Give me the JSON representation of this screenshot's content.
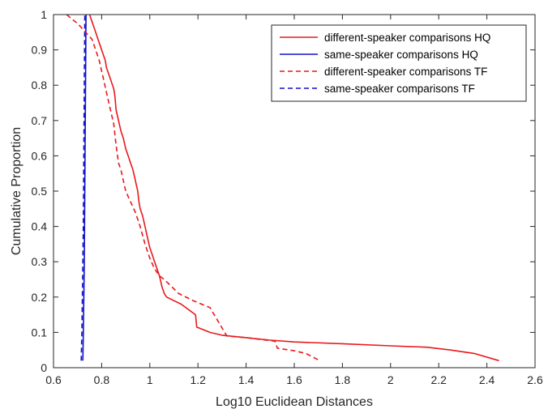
{
  "chart_data": {
    "type": "line",
    "title": "",
    "xlabel": "Log10 Euclidean Distances",
    "ylabel": "Cumulative Proportion",
    "xlim": [
      0.6,
      2.6
    ],
    "ylim": [
      0,
      1
    ],
    "xticks": [
      "0.6",
      "0.8",
      "1",
      "1.2",
      "1.4",
      "1.6",
      "1.8",
      "2",
      "2.2",
      "2.4",
      "2.6"
    ],
    "yticks": [
      "0",
      "0.1",
      "0.2",
      "0.3",
      "0.4",
      "0.5",
      "0.6",
      "0.7",
      "0.8",
      "0.9",
      "1"
    ],
    "grid": false,
    "legend_position": "top-right",
    "series": [
      {
        "name": "different-speaker comparisons HQ",
        "color": "#e8191c",
        "dash": "solid",
        "x": [
          0.75,
          0.755,
          0.76,
          0.765,
          0.77,
          0.775,
          0.78,
          0.785,
          0.79,
          0.795,
          0.8,
          0.805,
          0.81,
          0.815,
          0.82,
          0.83,
          0.84,
          0.85,
          0.855,
          0.86,
          0.87,
          0.88,
          0.89,
          0.9,
          0.91,
          0.92,
          0.93,
          0.94,
          0.95,
          0.955,
          0.96,
          0.97,
          0.98,
          0.99,
          1.0,
          1.01,
          1.02,
          1.03,
          1.04,
          1.05,
          1.06,
          1.07,
          1.1,
          1.13,
          1.15,
          1.19,
          1.195,
          1.25,
          1.3,
          1.4,
          1.5,
          1.6,
          1.8,
          2.0,
          2.15,
          2.25,
          2.35,
          2.45
        ],
        "y": [
          1.0,
          0.99,
          0.98,
          0.97,
          0.96,
          0.95,
          0.94,
          0.93,
          0.92,
          0.91,
          0.9,
          0.89,
          0.88,
          0.87,
          0.85,
          0.83,
          0.81,
          0.79,
          0.77,
          0.73,
          0.7,
          0.67,
          0.65,
          0.62,
          0.6,
          0.58,
          0.56,
          0.53,
          0.5,
          0.47,
          0.45,
          0.43,
          0.4,
          0.37,
          0.34,
          0.32,
          0.3,
          0.28,
          0.26,
          0.23,
          0.21,
          0.2,
          0.19,
          0.18,
          0.17,
          0.15,
          0.115,
          0.1,
          0.092,
          0.085,
          0.078,
          0.073,
          0.068,
          0.062,
          0.058,
          0.05,
          0.04,
          0.02
        ]
      },
      {
        "name": "same-speaker comparisons HQ",
        "color": "#1111cc",
        "dash": "solid",
        "x": [
          0.722,
          0.724,
          0.726,
          0.728,
          0.729,
          0.73,
          0.731,
          0.732,
          0.733,
          0.734,
          0.735
        ],
        "y": [
          0.02,
          0.1,
          0.2,
          0.3,
          0.4,
          0.5,
          0.6,
          0.7,
          0.8,
          0.9,
          1.0
        ]
      },
      {
        "name": "different-speaker comparisons TF",
        "color": "#e8191c",
        "dash": "dashed",
        "x": [
          0.655,
          0.68,
          0.7,
          0.72,
          0.74,
          0.76,
          0.77,
          0.78,
          0.79,
          0.8,
          0.81,
          0.82,
          0.83,
          0.84,
          0.85,
          0.86,
          0.87,
          0.88,
          0.89,
          0.9,
          0.92,
          0.94,
          0.96,
          0.98,
          1.0,
          1.02,
          1.04,
          1.06,
          1.09,
          1.12,
          1.18,
          1.25,
          1.32,
          1.4,
          1.52,
          1.53,
          1.6,
          1.65,
          1.7
        ],
        "y": [
          1.0,
          0.985,
          0.975,
          0.96,
          0.945,
          0.93,
          0.91,
          0.89,
          0.87,
          0.84,
          0.81,
          0.78,
          0.75,
          0.72,
          0.69,
          0.63,
          0.58,
          0.56,
          0.53,
          0.5,
          0.47,
          0.44,
          0.4,
          0.35,
          0.31,
          0.28,
          0.26,
          0.25,
          0.23,
          0.21,
          0.19,
          0.17,
          0.09,
          0.085,
          0.075,
          0.055,
          0.048,
          0.04,
          0.022
        ]
      },
      {
        "name": "same-speaker comparisons TF",
        "color": "#1111cc",
        "dash": "dashed",
        "x": [
          0.715,
          0.718,
          0.72,
          0.722,
          0.724,
          0.725,
          0.726,
          0.727,
          0.728,
          0.729,
          0.73
        ],
        "y": [
          0.02,
          0.1,
          0.2,
          0.3,
          0.4,
          0.5,
          0.6,
          0.7,
          0.8,
          0.9,
          1.0
        ]
      }
    ]
  }
}
